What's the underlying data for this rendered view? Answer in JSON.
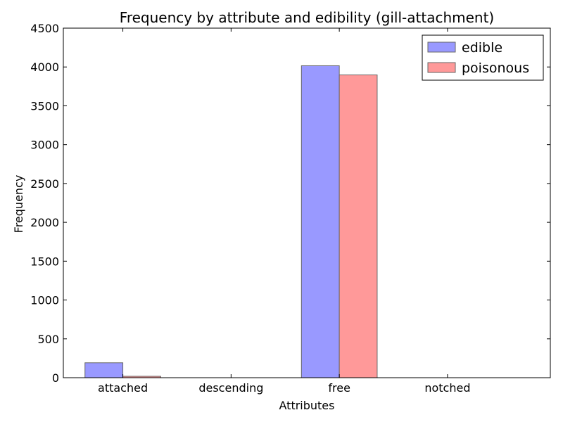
{
  "chart_data": {
    "type": "bar",
    "title": "Frequency by attribute and edibility (gill-attachment)",
    "xlabel": "Attributes",
    "ylabel": "Frequency",
    "categories": [
      "attached",
      "descending",
      "free",
      "notched"
    ],
    "series": [
      {
        "name": "edible",
        "color": "#9999ff",
        "values": [
          192,
          0,
          4016,
          0
        ]
      },
      {
        "name": "poisonous",
        "color": "#ff9999",
        "values": [
          18,
          0,
          3898,
          0
        ]
      }
    ],
    "ylim": [
      0,
      4500
    ],
    "yticks": [
      0,
      500,
      1000,
      1500,
      2000,
      2500,
      3000,
      3500,
      4000,
      4500
    ],
    "grid": false,
    "legend_position": "top-right"
  }
}
